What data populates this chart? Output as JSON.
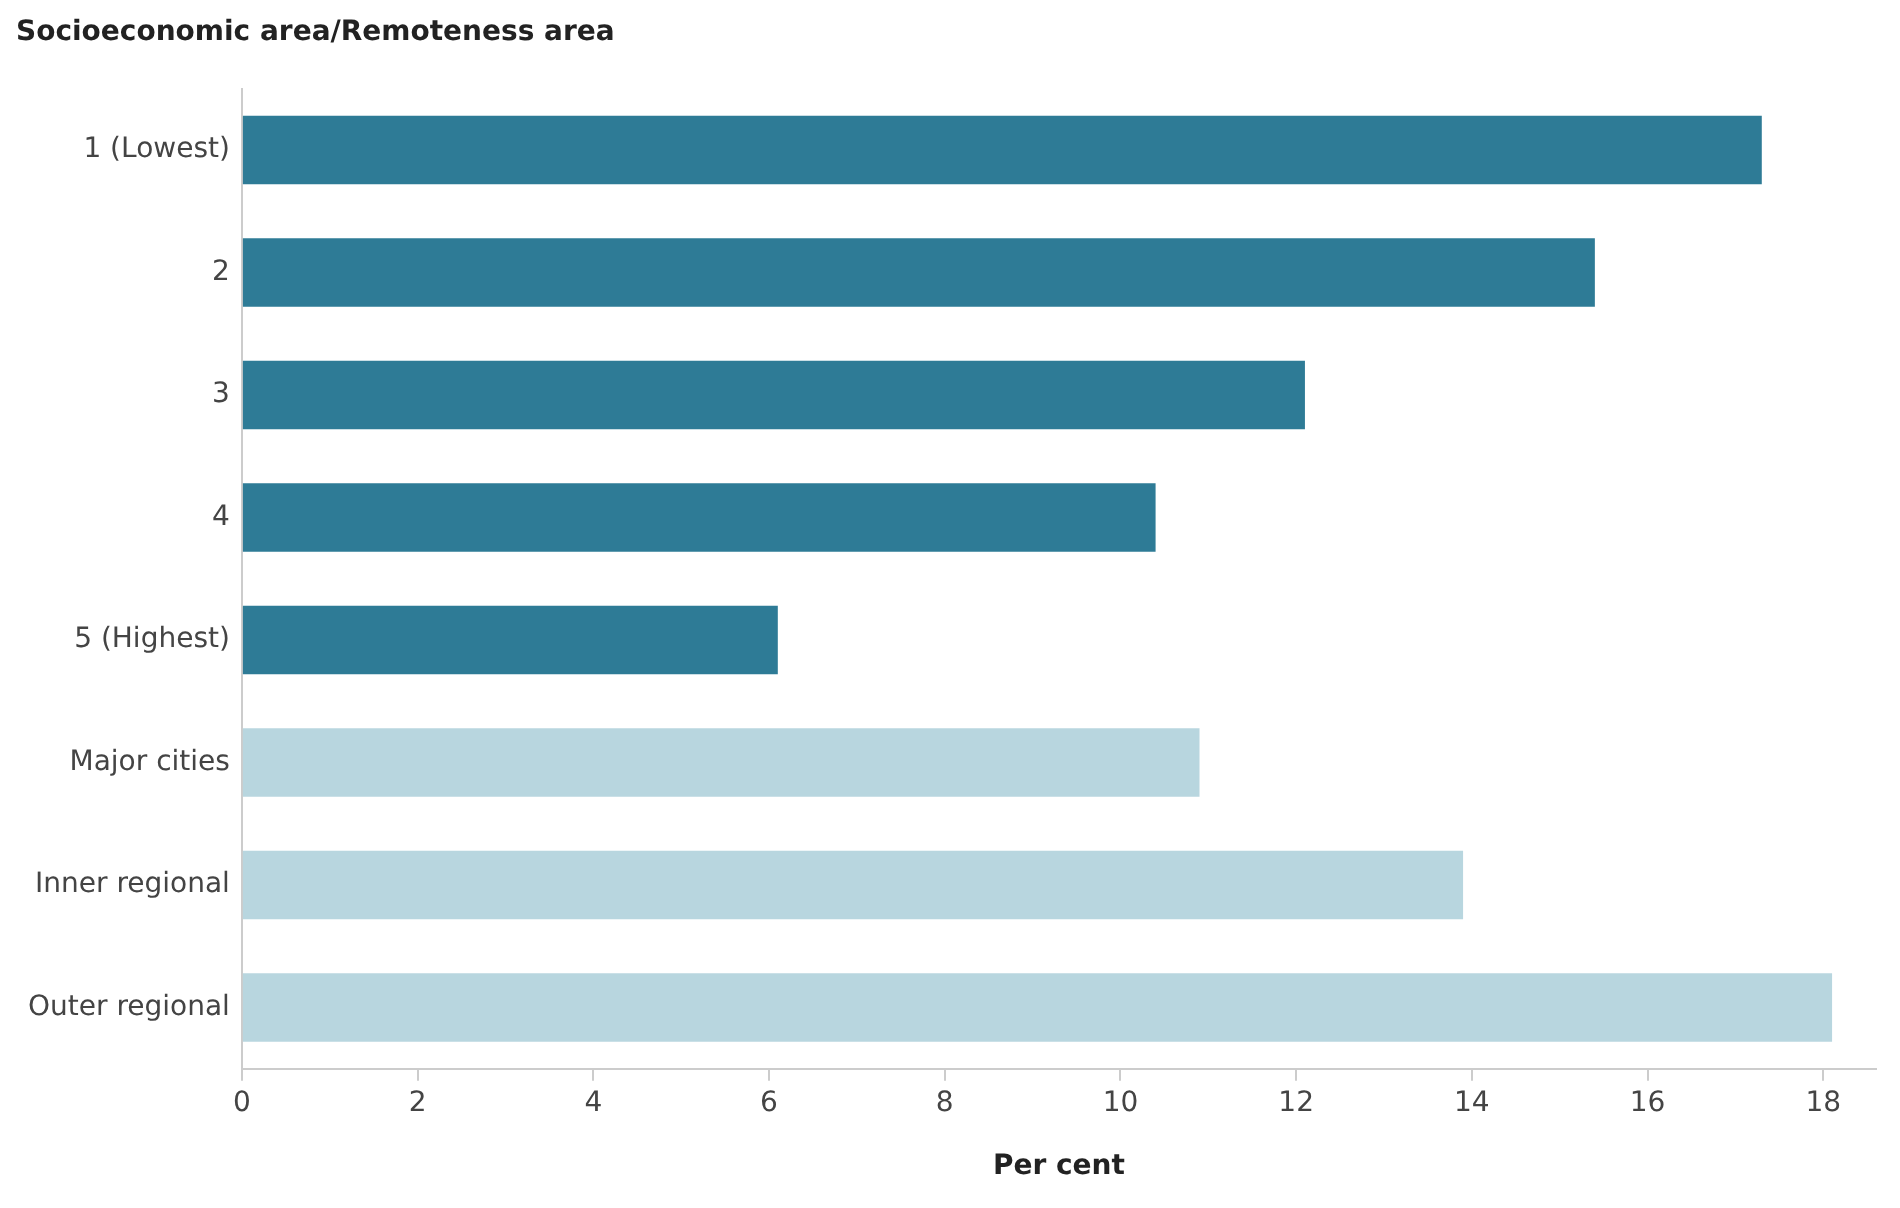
{
  "chart_data": {
    "type": "bar",
    "orientation": "horizontal",
    "ylabel": "Socioeconomic area/Remoteness area",
    "xlabel": "Per cent",
    "categories": [
      "1 (Lowest)",
      "2",
      "3",
      "4",
      "5 (Highest)",
      "Major cities",
      "Inner regional",
      "Outer regional"
    ],
    "values": [
      17.3,
      15.4,
      12.1,
      10.4,
      6.1,
      10.9,
      13.9,
      18.1
    ],
    "colors": [
      "#2e7b96",
      "#2e7b96",
      "#2e7b96",
      "#2e7b96",
      "#2e7b96",
      "#b8d6df",
      "#b8d6df",
      "#b8d6df"
    ],
    "xlim": [
      0,
      18.6
    ],
    "xticks": [
      0,
      2,
      4,
      6,
      8,
      10,
      12,
      14,
      16,
      18
    ],
    "grid": false
  }
}
